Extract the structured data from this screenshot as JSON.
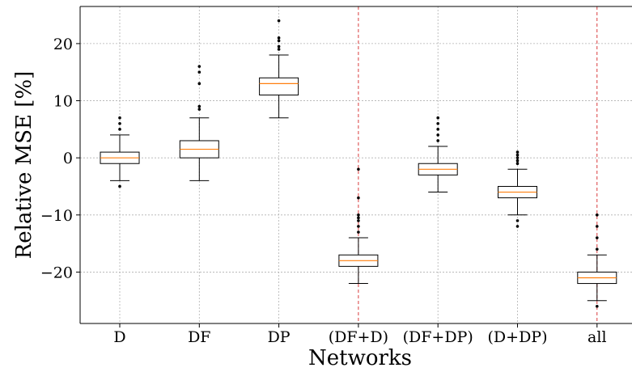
{
  "chart_data": {
    "type": "box",
    "title": "",
    "xlabel": "Networks",
    "ylabel": "Relative MSE [%]",
    "ylim": [
      -29,
      26.5
    ],
    "yticks": [
      -20,
      -10,
      0,
      10,
      20
    ],
    "grid": true,
    "separator_after_categories": [
      "DP",
      "(D+DP)"
    ],
    "colors": {
      "box": "#000000",
      "median": "#ff7f0e",
      "grid": "#b0b0b0",
      "separator": "#d62728"
    },
    "categories": [
      "D",
      "DF",
      "DP",
      "(DF+D)",
      "(DF+DP)",
      "(D+DP)",
      "all"
    ],
    "boxes": [
      {
        "label": "D",
        "whislo": -4,
        "q1": -1,
        "med": 0,
        "q3": 1,
        "whishi": 4,
        "fliers": [
          -5,
          5,
          6,
          7
        ]
      },
      {
        "label": "DF",
        "whislo": -4,
        "q1": 0,
        "med": 1.5,
        "q3": 3,
        "whishi": 7,
        "fliers": [
          8.5,
          9,
          13,
          15,
          16
        ]
      },
      {
        "label": "DP",
        "whislo": 7,
        "q1": 11,
        "med": 13,
        "q3": 14,
        "whishi": 18,
        "fliers": [
          19,
          19.5,
          20.5,
          21,
          24
        ]
      },
      {
        "label": "(DF+D)",
        "whislo": -22,
        "q1": -19,
        "med": -18,
        "q3": -17,
        "whishi": -14,
        "fliers": [
          -13,
          -12,
          -11,
          -10.5,
          -10,
          -7,
          -2
        ]
      },
      {
        "label": "(DF+DP)",
        "whislo": -6,
        "q1": -3,
        "med": -2,
        "q3": -1,
        "whishi": 2,
        "fliers": [
          3,
          4,
          5,
          6,
          7
        ]
      },
      {
        "label": "(D+DP)",
        "whislo": -10,
        "q1": -7,
        "med": -6,
        "q3": -5,
        "whishi": -2,
        "fliers": [
          -12,
          -11,
          -1,
          -0.5,
          0,
          0.5,
          1
        ]
      },
      {
        "label": "all",
        "whislo": -25,
        "q1": -22,
        "med": -21,
        "q3": -20,
        "whishi": -17,
        "fliers": [
          -26,
          -16,
          -14,
          -12,
          -10
        ]
      }
    ]
  }
}
